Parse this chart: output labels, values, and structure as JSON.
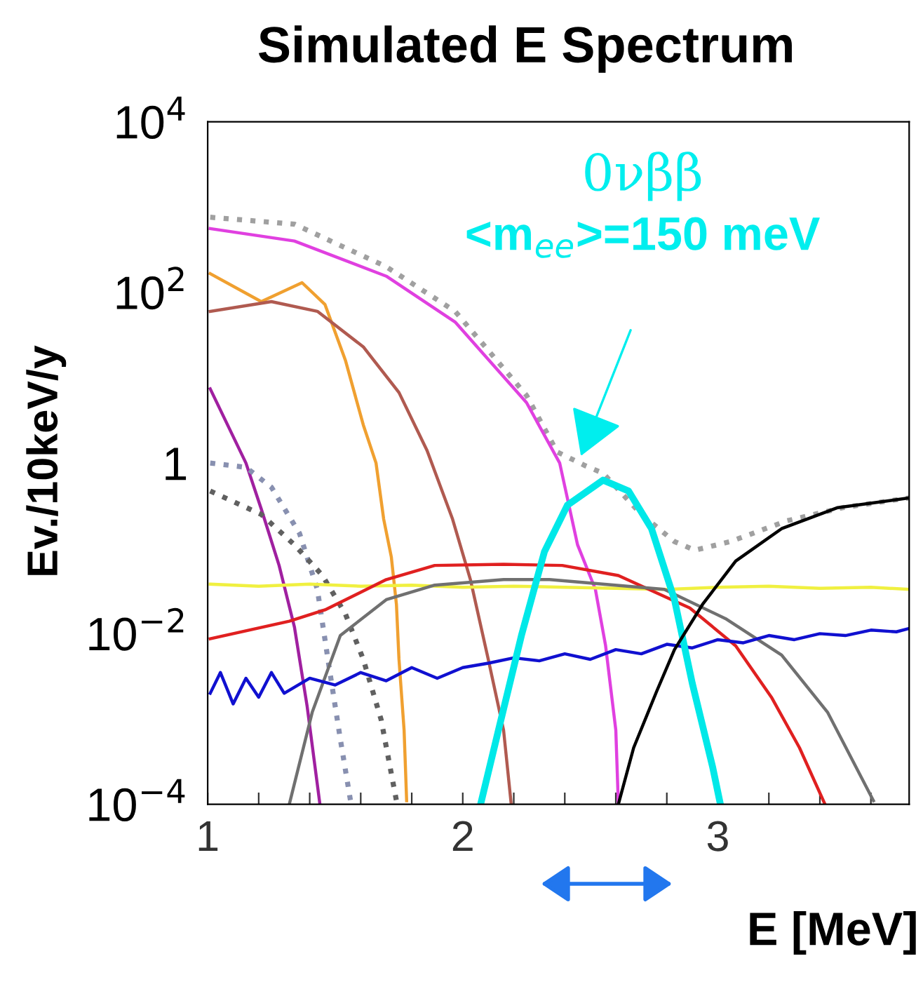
{
  "chart_data": {
    "type": "line",
    "title": "Simulated E Spectrum",
    "xlabel": "E [MeV]",
    "ylabel": "Ev./10keV/y",
    "log": "y",
    "xlim": [
      1,
      3.75
    ],
    "xticks": [
      1,
      {
        "value": 1.2,
        "label": null
      },
      {
        "value": 1.4,
        "label": null
      },
      {
        "value": 1.6,
        "label": null
      },
      {
        "value": 1.8,
        "label": null
      },
      2,
      {
        "value": 2.2,
        "label": null
      },
      {
        "value": 2.4,
        "label": null
      },
      {
        "value": 2.6,
        "label": null
      },
      {
        "value": 2.8,
        "label": null
      },
      3,
      {
        "value": 3.2,
        "label": null
      },
      {
        "value": 3.4,
        "label": null
      },
      {
        "value": 3.6,
        "label": null
      }
    ],
    "ylim": [
      0.0001,
      10000
    ],
    "yticks": [
      {
        "value": 0.0001,
        "label": "10$^{−4}$"
      },
      {
        "value": 0.01,
        "label": "10$^{−2}$"
      },
      1,
      {
        "value": 100,
        "label": "10$^{2}$"
      },
      {
        "value": 10000,
        "label": "10$^{4}$"
      }
    ],
    "grid": false,
    "legend": false,
    "marker": "none",
    "annotations": [
      "0νββ",
      "<m$_{ee}$>=150 meV"
    ],
    "series": [
      {
        "color": "#a0a0a0",
        "line_style": "dotted",
        "x": [
          1.01,
          1.34,
          1.7,
          1.97,
          2.25,
          2.37,
          2.48,
          2.55,
          2.7,
          2.83,
          2.91,
          3.05,
          3.27,
          3.49,
          3.75
        ],
        "values": [
          760,
          630,
          200,
          60,
          6.2,
          1.35,
          0.93,
          0.76,
          0.25,
          0.12,
          0.095,
          0.12,
          0.21,
          0.3,
          0.39
        ]
      },
      {
        "color": "#e040e0",
        "line_style": "solid",
        "x": [
          1.01,
          1.34,
          1.7,
          1.97,
          2.25,
          2.38,
          2.45,
          2.52,
          2.56,
          2.6,
          2.61
        ],
        "values": [
          560,
          400,
          155,
          45,
          5.1,
          1.0,
          0.11,
          0.033,
          0.0072,
          0.00074,
          0.0001
        ]
      },
      {
        "color": "#f0a030",
        "line_style": "solid",
        "x": [
          1.01,
          1.21,
          1.37,
          1.46,
          1.54,
          1.61,
          1.66,
          1.69,
          1.72,
          1.74,
          1.75,
          1.77,
          1.78
        ],
        "values": [
          166,
          78,
          130,
          72,
          16,
          2.8,
          1.0,
          0.22,
          0.079,
          0.022,
          0.005,
          0.00074,
          0.00011
        ]
      },
      {
        "color": "#b05a50",
        "line_style": "solid",
        "x": [
          1.01,
          1.25,
          1.43,
          1.61,
          1.75,
          1.86,
          1.96,
          2.03,
          2.1,
          2.16,
          2.19
        ],
        "values": [
          60,
          78,
          60,
          23,
          6.7,
          1.4,
          0.22,
          0.043,
          0.005,
          0.00074,
          0.0001
        ]
      },
      {
        "color": "#a020a0",
        "line_style": "solid",
        "x": [
          1.01,
          1.15,
          1.21,
          1.28,
          1.34,
          1.39,
          1.44
        ],
        "values": [
          7.4,
          1.0,
          0.29,
          0.063,
          0.012,
          0.0014,
          0.0001
        ]
      },
      {
        "color": "#8890b0",
        "line_style": "dotted",
        "x": [
          1.01,
          1.15,
          1.25,
          1.36,
          1.43,
          1.48,
          1.52,
          1.56
        ],
        "values": [
          1.0,
          0.89,
          0.52,
          0.15,
          0.033,
          0.0034,
          0.00058,
          0.00011
        ]
      },
      {
        "color": "#606060",
        "line_style": "dotted",
        "x": [
          1.01,
          1.21,
          1.34,
          1.45,
          1.54,
          1.61,
          1.68,
          1.74
        ],
        "values": [
          0.47,
          0.25,
          0.11,
          0.048,
          0.017,
          0.005,
          0.00098,
          0.00011
        ]
      },
      {
        "color": "#f0f040",
        "line_style": "solid",
        "x": [
          1.01,
          1.2,
          1.4,
          1.6,
          1.8,
          2.0,
          2.2,
          2.4,
          2.6,
          2.8,
          3.0,
          3.2,
          3.4,
          3.6,
          3.75
        ],
        "values": [
          0.038,
          0.036,
          0.038,
          0.036,
          0.037,
          0.035,
          0.036,
          0.035,
          0.034,
          0.033,
          0.035,
          0.036,
          0.034,
          0.035,
          0.033
        ]
      },
      {
        "color": "#e02020",
        "line_style": "solid",
        "x": [
          1.01,
          1.32,
          1.46,
          1.7,
          1.89,
          2.16,
          2.39,
          2.61,
          2.89,
          3.07,
          3.21,
          3.32,
          3.42
        ],
        "values": [
          0.0087,
          0.014,
          0.019,
          0.043,
          0.063,
          0.065,
          0.063,
          0.048,
          0.02,
          0.0072,
          0.0018,
          0.00046,
          0.0001
        ]
      },
      {
        "color": "#707070",
        "line_style": "solid",
        "x": [
          1.32,
          1.41,
          1.52,
          1.7,
          1.89,
          2.16,
          2.34,
          2.79,
          3.03,
          3.25,
          3.43,
          3.61
        ],
        "values": [
          0.0001,
          0.0012,
          0.0095,
          0.025,
          0.037,
          0.043,
          0.043,
          0.033,
          0.015,
          0.0056,
          0.0012,
          0.00011
        ]
      },
      {
        "color": "#1010d0",
        "line_style": "solid",
        "x": [
          1.01,
          1.05,
          1.1,
          1.15,
          1.2,
          1.25,
          1.3,
          1.4,
          1.5,
          1.6,
          1.7,
          1.8,
          1.9,
          2.0,
          2.1,
          2.2,
          2.3,
          2.4,
          2.5,
          2.6,
          2.7,
          2.8,
          2.9,
          3.0,
          3.1,
          3.2,
          3.3,
          3.4,
          3.5,
          3.6,
          3.7,
          3.75
        ],
        "values": [
          0.002,
          0.0035,
          0.0015,
          0.003,
          0.0018,
          0.0035,
          0.002,
          0.003,
          0.0025,
          0.0035,
          0.0028,
          0.004,
          0.003,
          0.004,
          0.0045,
          0.0052,
          0.0048,
          0.0058,
          0.005,
          0.0065,
          0.0058,
          0.0075,
          0.0068,
          0.0085,
          0.0078,
          0.0095,
          0.0085,
          0.01,
          0.0095,
          0.011,
          0.0105,
          0.0115
        ]
      },
      {
        "color": "#00e8e8",
        "line_style": "solid",
        "x": [
          2.07,
          2.14,
          2.23,
          2.32,
          2.41,
          2.55,
          2.65,
          2.74,
          2.83,
          2.9,
          2.98,
          3.01
        ],
        "values": [
          0.0001,
          0.00074,
          0.0095,
          0.091,
          0.32,
          0.63,
          0.47,
          0.17,
          0.025,
          0.0026,
          0.00027,
          0.0001
        ]
      },
      {
        "color": "#000000",
        "line_style": "solid",
        "x": [
          2.61,
          2.67,
          2.76,
          2.83,
          2.94,
          3.07,
          3.25,
          3.47,
          3.75
        ],
        "values": [
          0.0001,
          0.00046,
          0.0021,
          0.0065,
          0.022,
          0.071,
          0.17,
          0.3,
          0.39
        ]
      }
    ]
  }
}
